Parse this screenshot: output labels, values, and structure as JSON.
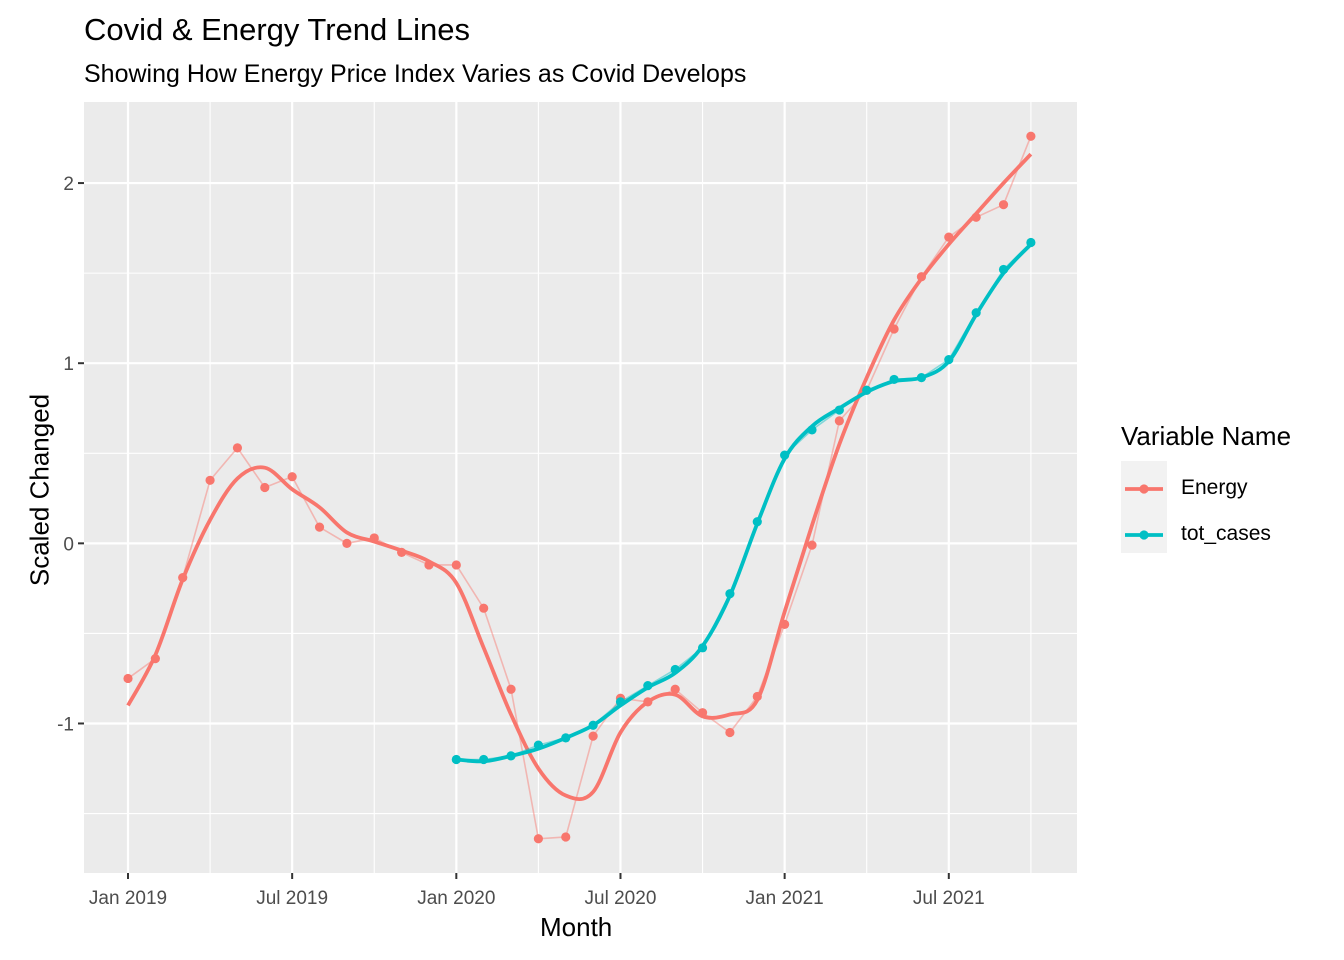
{
  "chart_data": {
    "type": "line",
    "title": "Covid & Energy Trend Lines",
    "subtitle": "Showing How Energy Price Index Varies as Covid Develops",
    "xlabel": "Month",
    "ylabel": "Scaled Changed",
    "x_tick_labels": [
      "Jan 2019",
      "Jul 2019",
      "Jan 2020",
      "Jul 2020",
      "Jan 2021",
      "Jul 2021"
    ],
    "y_ticks": [
      -1,
      0,
      1,
      2
    ],
    "y_tick_labels": [
      "-1",
      "0",
      "1",
      "2"
    ],
    "ylim": [
      -1.83,
      2.45
    ],
    "xlim": [
      "2018-12",
      "2021-10"
    ],
    "legend": {
      "title": "Variable Name",
      "position": "right"
    },
    "background": "#EBEBEB",
    "series": [
      {
        "name": "Energy",
        "color": "#F8766D",
        "x": [
          "2019-01",
          "2019-02",
          "2019-03",
          "2019-04",
          "2019-05",
          "2019-06",
          "2019-07",
          "2019-08",
          "2019-09",
          "2019-10",
          "2019-11",
          "2019-12",
          "2020-01",
          "2020-02",
          "2020-03",
          "2020-04",
          "2020-05",
          "2020-06",
          "2020-07",
          "2020-08",
          "2020-09",
          "2020-10",
          "2020-11",
          "2020-12",
          "2021-01",
          "2021-02",
          "2021-03",
          "2021-04",
          "2021-05",
          "2021-06",
          "2021-07",
          "2021-08",
          "2021-09",
          "2021-10"
        ],
        "values": [
          -0.75,
          -0.64,
          -0.19,
          0.35,
          0.53,
          0.31,
          0.37,
          0.09,
          0.0,
          0.03,
          -0.05,
          -0.12,
          -0.12,
          -0.36,
          -0.81,
          -1.64,
          -1.63,
          -1.07,
          -0.86,
          -0.88,
          -0.81,
          -0.94,
          -1.05,
          -0.85,
          -0.45,
          -0.01,
          0.68,
          0.85,
          1.19,
          1.48,
          1.7,
          1.81,
          1.88,
          2.26
        ],
        "trend": [
          -0.9,
          -0.62,
          -0.2,
          0.13,
          0.36,
          0.42,
          0.3,
          0.2,
          0.06,
          0.01,
          -0.04,
          -0.1,
          -0.22,
          -0.58,
          -0.95,
          -1.25,
          -1.4,
          -1.38,
          -1.05,
          -0.88,
          -0.84,
          -0.96,
          -0.95,
          -0.87,
          -0.38,
          0.1,
          0.55,
          0.92,
          1.24,
          1.47,
          1.66,
          1.83,
          2.0,
          2.16
        ]
      },
      {
        "name": "tot_cases",
        "color": "#00BFC4",
        "x": [
          "2020-01",
          "2020-02",
          "2020-03",
          "2020-04",
          "2020-05",
          "2020-06",
          "2020-07",
          "2020-08",
          "2020-09",
          "2020-10",
          "2020-11",
          "2020-12",
          "2021-01",
          "2021-02",
          "2021-03",
          "2021-04",
          "2021-05",
          "2021-06",
          "2021-07",
          "2021-08",
          "2021-09",
          "2021-10"
        ],
        "values": [
          -1.2,
          -1.2,
          -1.18,
          -1.12,
          -1.08,
          -1.01,
          -0.88,
          -0.79,
          -0.7,
          -0.58,
          -0.28,
          0.12,
          0.49,
          0.63,
          0.74,
          0.85,
          0.91,
          0.92,
          1.02,
          1.28,
          1.52,
          1.67
        ],
        "trend": [
          -1.2,
          -1.21,
          -1.18,
          -1.14,
          -1.08,
          -1.01,
          -0.9,
          -0.8,
          -0.72,
          -0.57,
          -0.29,
          0.11,
          0.47,
          0.65,
          0.75,
          0.84,
          0.9,
          0.92,
          1.01,
          1.27,
          1.5,
          1.66
        ]
      }
    ]
  }
}
